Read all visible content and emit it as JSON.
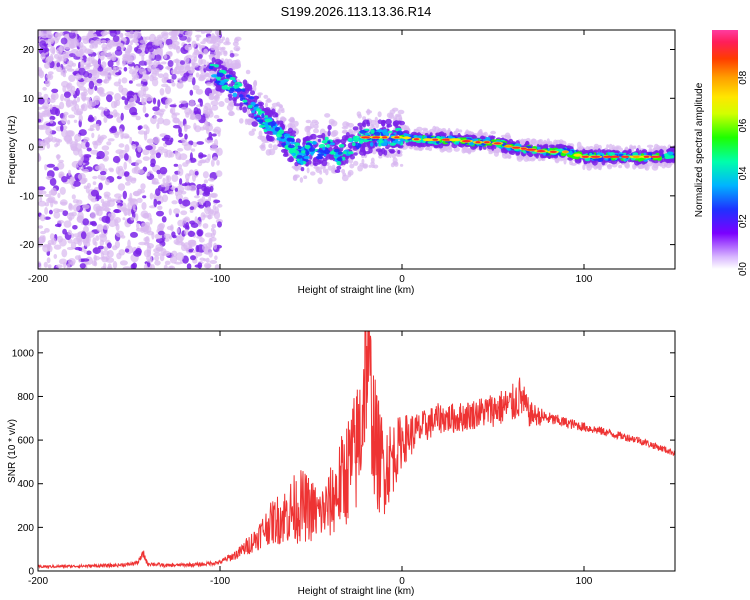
{
  "title": "S199.2026.113.13.36.R14",
  "colors": {
    "snr_line": "#ee3333",
    "axis": "#000000",
    "scatter_light": "#d8b8f0",
    "scatter_dark": "#7a22e8"
  },
  "chart_data": [
    {
      "type": "heatmap",
      "xlabel": "Height of straight line (km)",
      "ylabel": "Frequency (Hz)",
      "xlim": [
        -200,
        150
      ],
      "ylim": [
        -25,
        24
      ],
      "xticks": [
        -200,
        -100,
        0,
        100
      ],
      "yticks": [
        -20,
        -10,
        0,
        10,
        20
      ],
      "colorbar": {
        "label": "Normalized spectral amplitude",
        "range": [
          0,
          1
        ],
        "ticks": [
          0.0,
          0.2,
          0.4,
          0.6,
          0.8
        ],
        "colormap": "rainbow (white-violet-blue-cyan-green-yellow-orange-red-magenta)"
      },
      "ridge": {
        "x": [
          -105,
          -95,
          -85,
          -80,
          -75,
          -70,
          -65,
          -60,
          -55,
          -50,
          -45,
          -40,
          -35,
          -30,
          -25,
          -20,
          -15,
          -10,
          0,
          10,
          20,
          30,
          40,
          50,
          60,
          70,
          80,
          90,
          100,
          110,
          120,
          130,
          140,
          150
        ],
        "y": [
          16,
          13,
          10,
          7,
          5,
          4,
          2,
          0,
          -2,
          0,
          -1,
          1,
          -2,
          0,
          1,
          2,
          2,
          2,
          2,
          1.5,
          1.5,
          1.5,
          1,
          1,
          0,
          -0.5,
          -1,
          -1,
          -2,
          -2,
          -2,
          -2,
          -2,
          -1.5
        ]
      }
    },
    {
      "type": "line",
      "xlabel": "Height of straight line (km)",
      "ylabel": "SNR (10 * v/v)",
      "xlim": [
        -200,
        150
      ],
      "ylim": [
        0,
        1100
      ],
      "xticks": [
        -200,
        -100,
        0,
        100
      ],
      "yticks": [
        0,
        200,
        400,
        600,
        800,
        1000
      ],
      "series": [
        {
          "x": [
            -200,
            -180,
            -160,
            -150,
            -145,
            -142,
            -140,
            -130,
            -120,
            -110,
            -100,
            -90,
            -80,
            -75,
            -70,
            -65,
            -60,
            -55,
            -50,
            -45,
            -40,
            -35,
            -30,
            -25,
            -22,
            -20,
            -18,
            -15,
            -12,
            -10,
            -5,
            0,
            10,
            20,
            30,
            40,
            50,
            60,
            65,
            70,
            80,
            90,
            100,
            110,
            120,
            130,
            140,
            150
          ],
          "y": [
            20,
            22,
            25,
            30,
            40,
            80,
            35,
            25,
            28,
            30,
            40,
            80,
            150,
            200,
            230,
            250,
            280,
            300,
            280,
            260,
            300,
            380,
            460,
            550,
            700,
            1000,
            900,
            600,
            500,
            480,
            520,
            600,
            650,
            700,
            700,
            720,
            740,
            760,
            800,
            720,
            700,
            680,
            660,
            640,
            620,
            600,
            570,
            540
          ],
          "noise_amp": [
            6,
            6,
            8,
            8,
            10,
            20,
            10,
            8,
            8,
            8,
            10,
            25,
            60,
            80,
            110,
            130,
            160,
            170,
            150,
            120,
            160,
            200,
            250,
            300,
            350,
            400,
            350,
            300,
            250,
            230,
            170,
            120,
            80,
            70,
            70,
            70,
            80,
            90,
            100,
            60,
            30,
            25,
            22,
            20,
            18,
            18,
            16,
            14
          ]
        }
      ]
    }
  ]
}
